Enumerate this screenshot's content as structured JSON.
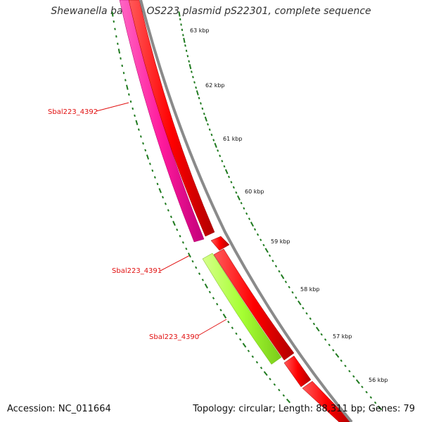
{
  "title": "Shewanella baltica OS223 plasmid pS22301, complete sequence",
  "footer": {
    "accession": "Accession: NC_011664",
    "summary": "Topology: circular; Length: 88,311 bp; Genes: 79"
  },
  "colors": {
    "backbone": "#8a8a8a",
    "forward_cds": "#ff0000",
    "reverse_cds": "#ff1493",
    "highlight_cds": "#99ff33",
    "ticks": "#1f7a1f",
    "gene_label": "#e11010"
  },
  "kbp_labels": [
    "63 kbp",
    "62 kbp",
    "61 kbp",
    "60 kbp",
    "59 kbp",
    "58 kbp",
    "57 kbp",
    "56 kbp"
  ],
  "gene_labels": [
    "Sbal223_4392",
    "Sbal223_4391",
    "Sbal223_4390"
  ]
}
